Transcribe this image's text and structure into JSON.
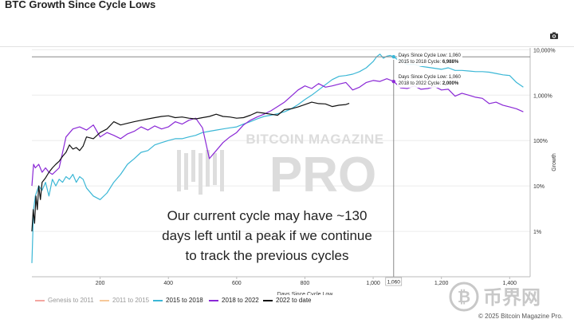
{
  "header": {
    "title": "BTC Growth Since Cycle Lows",
    "camera_icon": "camera-icon"
  },
  "annotation": {
    "lines": [
      "Our current cycle may have ~130",
      "days left until a peak if we continue",
      "to track the previous cycles"
    ]
  },
  "tooltips": [
    {
      "line1": "Days Since Cycle Low: 1,060",
      "line2_prefix": "2015 to 2018 Cycle: ",
      "line2_value": "6,988%"
    },
    {
      "line1": "Days Since Cycle Low: 1,060",
      "line2_prefix": "2018 to 2022 Cycle: ",
      "line2_value": "2,000%"
    }
  ],
  "cursor_x_label": "1,060",
  "watermark": {
    "top": "BITCOIN MAGAZINE",
    "bottom": "PRO"
  },
  "credit": "© 2025 Bitcoin Magazine Pro.",
  "logo_text": "币界网",
  "colors": {
    "genesis": "#f4a6a0",
    "c2011": "#f7c89a",
    "c2015": "#3bb7d6",
    "c2018": "#8a28d6",
    "c2022": "#111111"
  },
  "chart_data": {
    "type": "line",
    "title": "BTC Growth Since Cycle Lows",
    "xlabel": "Days Since Cycle Low",
    "ylabel": "Growth",
    "xlim": [
      0,
      1460
    ],
    "ylim": [
      0.1,
      11000
    ],
    "y_scale": "log",
    "x_ticks": [
      200,
      400,
      600,
      800,
      1000,
      1200,
      1400
    ],
    "x_tick_labels": [
      "200",
      "400",
      "600",
      "800",
      "1,000",
      "1,200",
      "1,400"
    ],
    "y_ticks": [
      1,
      10,
      100,
      1000,
      10000
    ],
    "y_tick_labels": [
      "1%",
      "10%",
      "100%",
      "1,000%",
      "10,000%"
    ],
    "legend_position": "bottom",
    "series": [
      {
        "name": "Genesis to 2011",
        "color_key": "genesis",
        "visible": false,
        "x": [],
        "y": []
      },
      {
        "name": "2011 to 2015",
        "color_key": "c2011",
        "visible": false,
        "x": [],
        "y": []
      },
      {
        "name": "2015 to 2018",
        "color_key": "c2015",
        "x": [
          0,
          5,
          10,
          20,
          30,
          40,
          50,
          60,
          70,
          80,
          90,
          100,
          110,
          120,
          130,
          140,
          150,
          160,
          180,
          200,
          220,
          240,
          260,
          280,
          300,
          320,
          340,
          360,
          380,
          400,
          420,
          440,
          460,
          480,
          500,
          520,
          540,
          560,
          580,
          600,
          620,
          640,
          660,
          680,
          700,
          720,
          740,
          760,
          780,
          800,
          820,
          840,
          860,
          880,
          900,
          920,
          940,
          960,
          980,
          1000,
          1010,
          1020,
          1030,
          1040,
          1050,
          1060,
          1070,
          1080,
          1090,
          1100,
          1120,
          1140,
          1160,
          1180,
          1200,
          1220,
          1240,
          1260,
          1280,
          1300,
          1320,
          1340,
          1360,
          1380,
          1400,
          1420,
          1440
        ],
        "y": [
          0.2,
          3,
          6,
          10,
          8,
          12,
          6,
          14,
          10,
          14,
          12,
          16,
          14,
          18,
          12,
          16,
          14,
          9,
          6,
          5,
          7,
          12,
          18,
          30,
          40,
          55,
          60,
          80,
          90,
          100,
          110,
          110,
          120,
          130,
          150,
          160,
          170,
          180,
          190,
          200,
          230,
          260,
          300,
          340,
          360,
          390,
          430,
          500,
          620,
          800,
          1000,
          1300,
          1700,
          2200,
          2600,
          2700,
          2900,
          3300,
          4000,
          5500,
          7000,
          8000,
          6500,
          7200,
          7500,
          6988,
          6200,
          5900,
          5300,
          4700,
          4800,
          4300,
          4100,
          3900,
          3700,
          4000,
          3500,
          3500,
          3400,
          3300,
          3300,
          3200,
          3000,
          2800,
          2700,
          1900,
          1500
        ]
      },
      {
        "name": "2018 to 2022",
        "color_key": "c2018",
        "x": [
          0,
          5,
          10,
          20,
          30,
          40,
          50,
          60,
          80,
          100,
          120,
          140,
          160,
          180,
          200,
          220,
          240,
          260,
          280,
          300,
          320,
          340,
          360,
          380,
          400,
          420,
          440,
          460,
          480,
          500,
          520,
          540,
          560,
          580,
          600,
          620,
          640,
          660,
          680,
          700,
          720,
          740,
          760,
          780,
          800,
          820,
          840,
          860,
          880,
          900,
          920,
          940,
          960,
          980,
          1000,
          1020,
          1040,
          1060,
          1080,
          1100,
          1120,
          1140,
          1160,
          1180,
          1200,
          1220,
          1240,
          1260,
          1280,
          1300,
          1320,
          1340,
          1360,
          1380,
          1400,
          1420,
          1440
        ],
        "y": [
          10,
          30,
          25,
          30,
          20,
          25,
          20,
          18,
          25,
          120,
          180,
          200,
          170,
          220,
          120,
          150,
          130,
          110,
          140,
          160,
          200,
          170,
          210,
          180,
          200,
          260,
          230,
          280,
          310,
          190,
          40,
          60,
          90,
          120,
          150,
          220,
          280,
          330,
          380,
          450,
          560,
          700,
          950,
          1300,
          1600,
          1400,
          1800,
          1500,
          1600,
          1750,
          1900,
          1300,
          1500,
          1900,
          2100,
          2000,
          2300,
          2000,
          1450,
          1400,
          1600,
          1350,
          1400,
          1550,
          1300,
          1350,
          950,
          1100,
          1000,
          900,
          850,
          650,
          700,
          600,
          550,
          500,
          430
        ]
      },
      {
        "name": "2022 to date",
        "color_key": "c2022",
        "x": [
          0,
          4,
          8,
          12,
          16,
          20,
          25,
          30,
          40,
          50,
          60,
          70,
          80,
          90,
          100,
          110,
          120,
          130,
          140,
          150,
          160,
          180,
          200,
          220,
          240,
          260,
          280,
          300,
          320,
          340,
          360,
          380,
          400,
          420,
          440,
          460,
          480,
          500,
          520,
          540,
          560,
          580,
          600,
          620,
          640,
          660,
          680,
          700,
          720,
          740,
          760,
          780,
          800,
          820,
          840,
          860,
          880,
          900,
          920,
          930
        ],
        "y": [
          1,
          3,
          1.5,
          6,
          3,
          10,
          5,
          12,
          15,
          20,
          25,
          30,
          35,
          45,
          55,
          80,
          65,
          70,
          60,
          75,
          120,
          110,
          150,
          180,
          260,
          220,
          240,
          260,
          280,
          300,
          320,
          340,
          350,
          320,
          330,
          310,
          300,
          320,
          340,
          380,
          340,
          330,
          310,
          320,
          360,
          420,
          400,
          380,
          360,
          480,
          500,
          550,
          620,
          700,
          650,
          640,
          560,
          600,
          620,
          660
        ]
      }
    ]
  },
  "legend": {
    "items": [
      "Genesis to 2011",
      "2011 to 2015",
      "2015 to 2018",
      "2018 to 2022",
      "2022 to date"
    ]
  }
}
